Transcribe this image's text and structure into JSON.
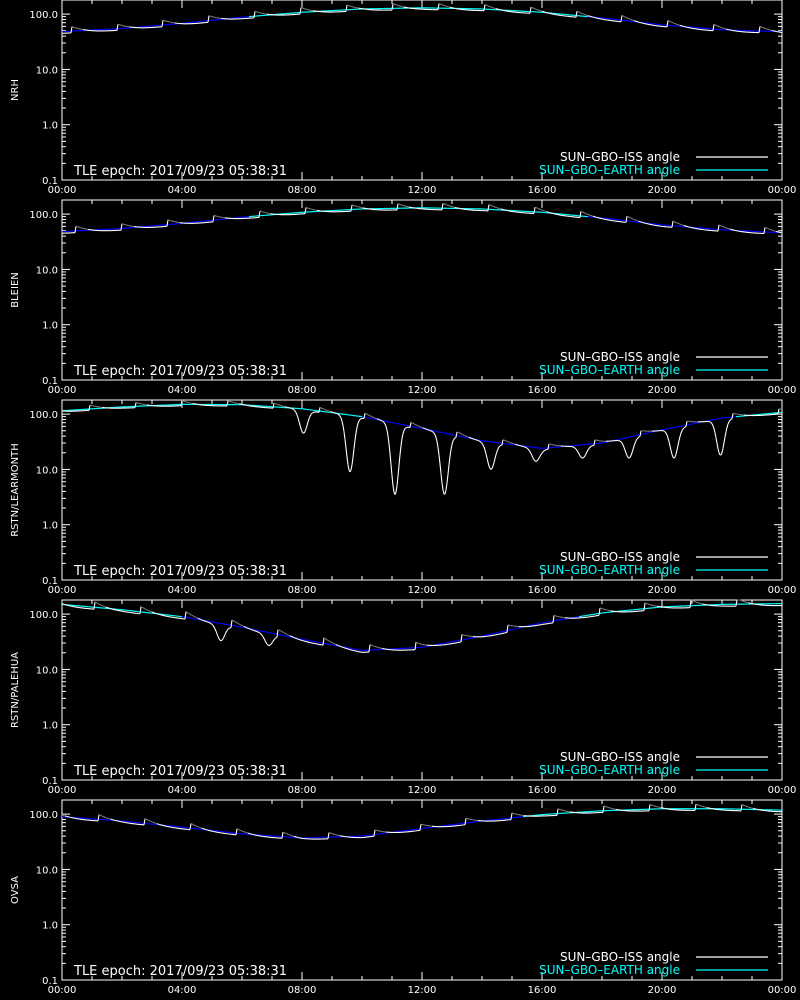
{
  "colors": {
    "background": "#000000",
    "axes": "#ffffff",
    "iss_sunlit": "#ffffff",
    "iss_dark": "#7a7a7a",
    "earth_above": "#00ffff",
    "earth_below": "#0000ff"
  },
  "chart_data": [
    {
      "type": "line",
      "ylabel": "NRH",
      "yscale": "log",
      "ylim": [
        0.1,
        180
      ],
      "yticks": [
        "0.1",
        "1.0",
        "10.0",
        "100.0"
      ],
      "xticks": [
        "00:00",
        "04:00",
        "08:00",
        "12:00",
        "16:00",
        "20:00",
        "00:00"
      ],
      "xlim_hours": [
        0,
        24
      ],
      "annotation": "TLE epoch: 2017/09/23 05:38:31",
      "legend": [
        "SUN–GBO–ISS angle",
        "SUN–GBO–EARTH angle"
      ],
      "legend_position": "bottom-right",
      "series": [
        {
          "name": "SUN–GBO–ISS angle",
          "baseline": "earth",
          "orbit_hours": 1.53,
          "phase": 0.8,
          "wiggle_amp": 0.17,
          "spike_depth": 0.0
        },
        {
          "name": "SUN–GBO–EARTH angle",
          "x_hours": [
            0,
            2,
            4,
            6,
            8,
            10,
            12,
            14,
            16,
            18,
            20,
            22,
            24
          ],
          "y": [
            48,
            55,
            68,
            88,
            108,
            124,
            130,
            124,
            108,
            85,
            64,
            52,
            48
          ]
        }
      ]
    },
    {
      "type": "line",
      "ylabel": "BLEIEN",
      "yscale": "log",
      "ylim": [
        0.1,
        180
      ],
      "yticks": [
        "0.1",
        "1.0",
        "10.0",
        "100.0"
      ],
      "xticks": [
        "00:00",
        "04:00",
        "08:00",
        "12:00",
        "16:00",
        "20:00",
        "00:00"
      ],
      "xlim_hours": [
        0,
        24
      ],
      "annotation": "TLE epoch: 2017/09/23 05:38:31",
      "legend": [
        "SUN–GBO–ISS angle",
        "SUN–GBO–EARTH angle"
      ],
      "legend_position": "bottom-right",
      "series": [
        {
          "name": "SUN–GBO–ISS angle",
          "baseline": "earth",
          "orbit_hours": 1.53,
          "phase": 0.7,
          "wiggle_amp": 0.17,
          "spike_depth": 0.0
        },
        {
          "name": "SUN–GBO–EARTH angle",
          "x_hours": [
            0,
            2,
            4,
            6,
            8,
            10,
            12,
            14,
            16,
            18,
            20,
            22,
            24
          ],
          "y": [
            48,
            55,
            68,
            88,
            108,
            124,
            130,
            124,
            108,
            85,
            64,
            52,
            46
          ]
        }
      ]
    },
    {
      "type": "line",
      "ylabel": "RSTN/LEARMONTH",
      "yscale": "log",
      "ylim": [
        0.1,
        180
      ],
      "yticks": [
        "0.1",
        "1.0",
        "10.0",
        "100.0"
      ],
      "xticks": [
        "00:00",
        "04:00",
        "08:00",
        "12:00",
        "16:00",
        "20:00",
        "00:00"
      ],
      "xlim_hours": [
        0,
        24
      ],
      "annotation": "TLE epoch: 2017/09/23 05:38:31",
      "legend": [
        "SUN–GBO–ISS angle",
        "SUN–GBO–EARTH angle"
      ],
      "legend_position": "bottom-right",
      "series": [
        {
          "name": "SUN–GBO–ISS angle",
          "baseline": "earth",
          "orbit_hours": 1.53,
          "phase": 0.4,
          "wiggle_amp": 0.14,
          "dips": [
            [
              8.05,
              45
            ],
            [
              9.6,
              9
            ],
            [
              11.1,
              3.5
            ],
            [
              12.75,
              3.5
            ],
            [
              14.3,
              10
            ],
            [
              15.8,
              14
            ],
            [
              17.35,
              16
            ],
            [
              18.9,
              16
            ],
            [
              20.4,
              16
            ],
            [
              21.95,
              18
            ]
          ]
        },
        {
          "name": "SUN–GBO–EARTH angle",
          "x_hours": [
            0,
            2,
            4,
            6,
            8,
            10,
            12,
            14,
            16,
            18,
            20,
            22,
            24
          ],
          "y": [
            115,
            135,
            150,
            148,
            125,
            90,
            55,
            33,
            24,
            30,
            52,
            85,
            108
          ]
        }
      ]
    },
    {
      "type": "line",
      "ylabel": "RSTN/PALEHUA",
      "yscale": "log",
      "ylim": [
        0.1,
        180
      ],
      "yticks": [
        "0.1",
        "1.0",
        "10.0",
        "100.0"
      ],
      "xticks": [
        "00:00",
        "04:00",
        "08:00",
        "12:00",
        "16:00",
        "20:00",
        "00:00"
      ],
      "xlim_hours": [
        0,
        24
      ],
      "annotation": "TLE epoch: 2017/09/23 05:38:31",
      "legend": [
        "SUN–GBO–ISS angle",
        "SUN–GBO–EARTH angle"
      ],
      "legend_position": "bottom-right",
      "series": [
        {
          "name": "SUN–GBO–ISS angle",
          "baseline": "earth",
          "orbit_hours": 1.53,
          "phase": 0.3,
          "wiggle_amp": 0.2,
          "dips": [
            [
              5.3,
              33
            ],
            [
              6.9,
              27
            ]
          ]
        },
        {
          "name": "SUN–GBO–EARTH angle",
          "x_hours": [
            0,
            2,
            4,
            6,
            8,
            10,
            12,
            14,
            16,
            18,
            20,
            22,
            24
          ],
          "y": [
            150,
            120,
            90,
            58,
            35,
            22,
            25,
            40,
            70,
            105,
            135,
            150,
            155
          ]
        }
      ]
    },
    {
      "type": "line",
      "ylabel": "OVSA",
      "yscale": "log",
      "ylim": [
        0.1,
        180
      ],
      "yticks": [
        "0.1",
        "1.0",
        "10.0",
        "100.0"
      ],
      "xticks": [
        "00:00",
        "04:00",
        "08:00",
        "12:00",
        "16:00",
        "20:00",
        "00:00"
      ],
      "xlim_hours": [
        0,
        24
      ],
      "annotation": "TLE epoch: 2017/09/23 05:38:31",
      "legend": [
        "SUN–GBO–ISS angle",
        "SUN–GBO–EARTH angle"
      ],
      "legend_position": "bottom-right",
      "series": [
        {
          "name": "SUN–GBO–ISS angle",
          "baseline": "earth",
          "orbit_hours": 1.53,
          "phase": 0.2,
          "wiggle_amp": 0.17
        },
        {
          "name": "SUN–GBO–EARTH angle",
          "x_hours": [
            0,
            2,
            4,
            6,
            8,
            10,
            12,
            14,
            16,
            18,
            20,
            22,
            24
          ],
          "y": [
            90,
            75,
            58,
            44,
            37,
            40,
            55,
            75,
            98,
            115,
            125,
            125,
            118
          ]
        }
      ]
    }
  ]
}
